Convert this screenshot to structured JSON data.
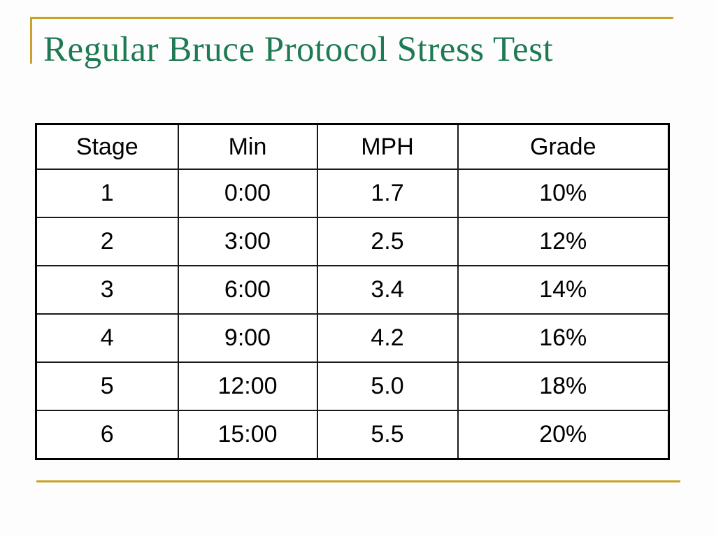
{
  "slide": {
    "title": "Regular Bruce Protocol Stress Test",
    "accent_color": "#C9A227",
    "title_color": "#1E7A52",
    "table_border_color": "#000000"
  },
  "table": {
    "columns": [
      "Stage",
      "Min",
      "MPH",
      "Grade"
    ],
    "rows": [
      [
        "1",
        "0:00",
        "1.7",
        "10%"
      ],
      [
        "2",
        "3:00",
        "2.5",
        "12%"
      ],
      [
        "3",
        "6:00",
        "3.4",
        "14%"
      ],
      [
        "4",
        "9:00",
        "4.2",
        "16%"
      ],
      [
        "5",
        "12:00",
        "5.0",
        "18%"
      ],
      [
        "6",
        "15:00",
        "5.5",
        "20%"
      ]
    ]
  },
  "chart_data": {
    "type": "table",
    "title": "Regular Bruce Protocol Stress Test",
    "columns": [
      "Stage",
      "Min",
      "MPH",
      "Grade"
    ],
    "rows": [
      [
        "1",
        "0:00",
        "1.7",
        "10%"
      ],
      [
        "2",
        "3:00",
        "2.5",
        "12%"
      ],
      [
        "3",
        "6:00",
        "3.4",
        "14%"
      ],
      [
        "4",
        "9:00",
        "4.2",
        "16%"
      ],
      [
        "5",
        "12:00",
        "5.0",
        "18%"
      ],
      [
        "6",
        "15:00",
        "5.5",
        "20%"
      ]
    ]
  }
}
